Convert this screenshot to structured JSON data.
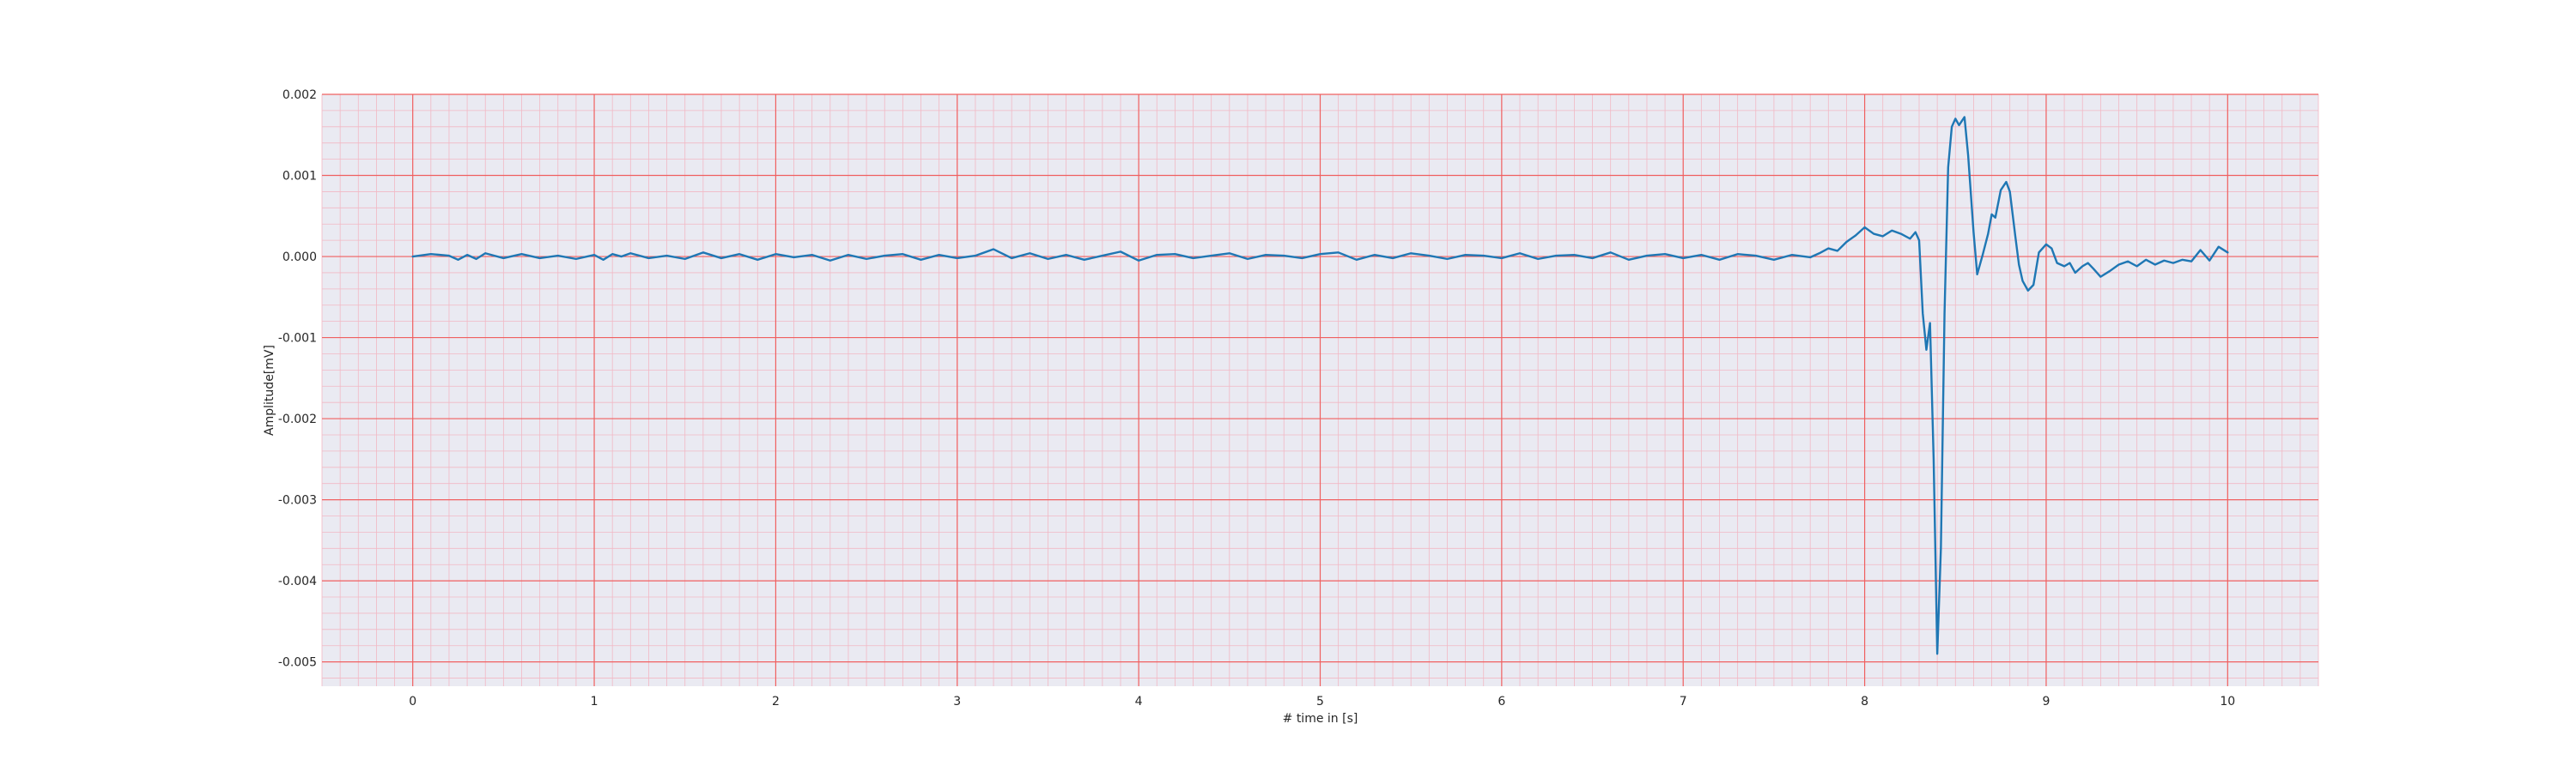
{
  "chart_data": {
    "type": "line",
    "xlabel": "# time in [s]",
    "ylabel": "Amplitude[mV]",
    "xlim": [
      -0.5,
      10.5
    ],
    "ylim": [
      -0.0053,
      0.002
    ],
    "xticks": [
      0,
      1,
      2,
      3,
      4,
      5,
      6,
      7,
      8,
      9,
      10
    ],
    "xtick_labels": [
      "0",
      "1",
      "2",
      "3",
      "4",
      "5",
      "6",
      "7",
      "8",
      "9",
      "10"
    ],
    "yticks": [
      0.002,
      0.001,
      0.0,
      -0.001,
      -0.002,
      -0.003,
      -0.004,
      -0.005
    ],
    "ytick_labels": [
      "0.002",
      "0.001",
      "0.000",
      "-0.001",
      "-0.002",
      "-0.003",
      "-0.004",
      "-0.005"
    ],
    "grid": true,
    "minor_grid": true,
    "colors": {
      "background": "#eaeaf2",
      "major_grid": "#f06060",
      "minor_grid": "#f2b8c4",
      "line": "#1f77b4"
    },
    "series": [
      {
        "color": "#1f77b4",
        "x": [
          0.0,
          0.1,
          0.2,
          0.25,
          0.3,
          0.35,
          0.4,
          0.45,
          0.5,
          0.6,
          0.7,
          0.8,
          0.9,
          1.0,
          1.05,
          1.1,
          1.15,
          1.2,
          1.3,
          1.4,
          1.5,
          1.6,
          1.7,
          1.8,
          1.9,
          2.0,
          2.1,
          2.2,
          2.3,
          2.4,
          2.5,
          2.6,
          2.7,
          2.8,
          2.9,
          3.0,
          3.1,
          3.2,
          3.3,
          3.4,
          3.5,
          3.6,
          3.7,
          3.8,
          3.9,
          4.0,
          4.1,
          4.2,
          4.3,
          4.4,
          4.5,
          4.6,
          4.7,
          4.8,
          4.9,
          5.0,
          5.1,
          5.2,
          5.3,
          5.4,
          5.5,
          5.6,
          5.7,
          5.8,
          5.9,
          6.0,
          6.1,
          6.2,
          6.3,
          6.4,
          6.5,
          6.6,
          6.7,
          6.8,
          6.9,
          7.0,
          7.1,
          7.2,
          7.3,
          7.4,
          7.5,
          7.6,
          7.7,
          7.75,
          7.8,
          7.85,
          7.9,
          7.95,
          8.0,
          8.05,
          8.1,
          8.15,
          8.2,
          8.25,
          8.28,
          8.3,
          8.32,
          8.34,
          8.36,
          8.38,
          8.4,
          8.42,
          8.44,
          8.46,
          8.48,
          8.5,
          8.52,
          8.55,
          8.57,
          8.6,
          8.62,
          8.65,
          8.68,
          8.7,
          8.72,
          8.75,
          8.78,
          8.8,
          8.83,
          8.85,
          8.87,
          8.9,
          8.93,
          8.96,
          9.0,
          9.03,
          9.06,
          9.1,
          9.13,
          9.16,
          9.2,
          9.23,
          9.26,
          9.3,
          9.35,
          9.4,
          9.45,
          9.5,
          9.55,
          9.6,
          9.65,
          9.7,
          9.75,
          9.8,
          9.85,
          9.9,
          9.95,
          10.0
        ],
        "y": [
          0.0,
          3e-05,
          1e-05,
          -4e-05,
          2e-05,
          -3e-05,
          4e-05,
          1e-05,
          -2e-05,
          3e-05,
          -2e-05,
          1e-05,
          -3e-05,
          2e-05,
          -4e-05,
          3e-05,
          0.0,
          4e-05,
          -2e-05,
          1e-05,
          -3e-05,
          5e-05,
          -2e-05,
          3e-05,
          -4e-05,
          3e-05,
          -1e-05,
          2e-05,
          -5e-05,
          2e-05,
          -3e-05,
          1e-05,
          3e-05,
          -4e-05,
          2e-05,
          -2e-05,
          1e-05,
          9e-05,
          -2e-05,
          4e-05,
          -3e-05,
          2e-05,
          -4e-05,
          1e-05,
          6e-05,
          -5e-05,
          2e-05,
          3e-05,
          -2e-05,
          1e-05,
          4e-05,
          -3e-05,
          2e-05,
          1e-05,
          -2e-05,
          3e-05,
          5e-05,
          -4e-05,
          2e-05,
          -2e-05,
          4e-05,
          1e-05,
          -3e-05,
          2e-05,
          1e-05,
          -2e-05,
          4e-05,
          -3e-05,
          1e-05,
          2e-05,
          -2e-05,
          5e-05,
          -4e-05,
          1e-05,
          3e-05,
          -2e-05,
          2e-05,
          -4e-05,
          3e-05,
          1e-05,
          -4e-05,
          2e-05,
          -1e-05,
          4e-05,
          0.0001,
          7e-05,
          0.00018,
          0.00026,
          0.00036,
          0.00028,
          0.00025,
          0.00032,
          0.00028,
          0.00022,
          0.0003,
          0.0002,
          -0.0007,
          -0.00115,
          -0.00082,
          -0.0025,
          -0.0049,
          -0.0036,
          -0.0007,
          0.0011,
          0.0016,
          0.0017,
          0.00162,
          0.00172,
          0.00125,
          0.0003,
          -0.00022,
          2e-05,
          0.00028,
          0.00052,
          0.00048,
          0.00082,
          0.00092,
          0.0008,
          0.00025,
          -0.0001,
          -0.0003,
          -0.00042,
          -0.00035,
          5e-05,
          0.00015,
          0.0001,
          -8e-05,
          -0.00012,
          -8e-05,
          -0.0002,
          -0.00012,
          -8e-05,
          -0.00015,
          -0.00025,
          -0.00018,
          -0.0001,
          -6e-05,
          -0.00012,
          -4e-05,
          -0.0001,
          -5e-05,
          -8e-05,
          -4e-05,
          -6e-05,
          8e-05,
          -5e-05,
          0.00012,
          5e-05
        ]
      }
    ]
  }
}
